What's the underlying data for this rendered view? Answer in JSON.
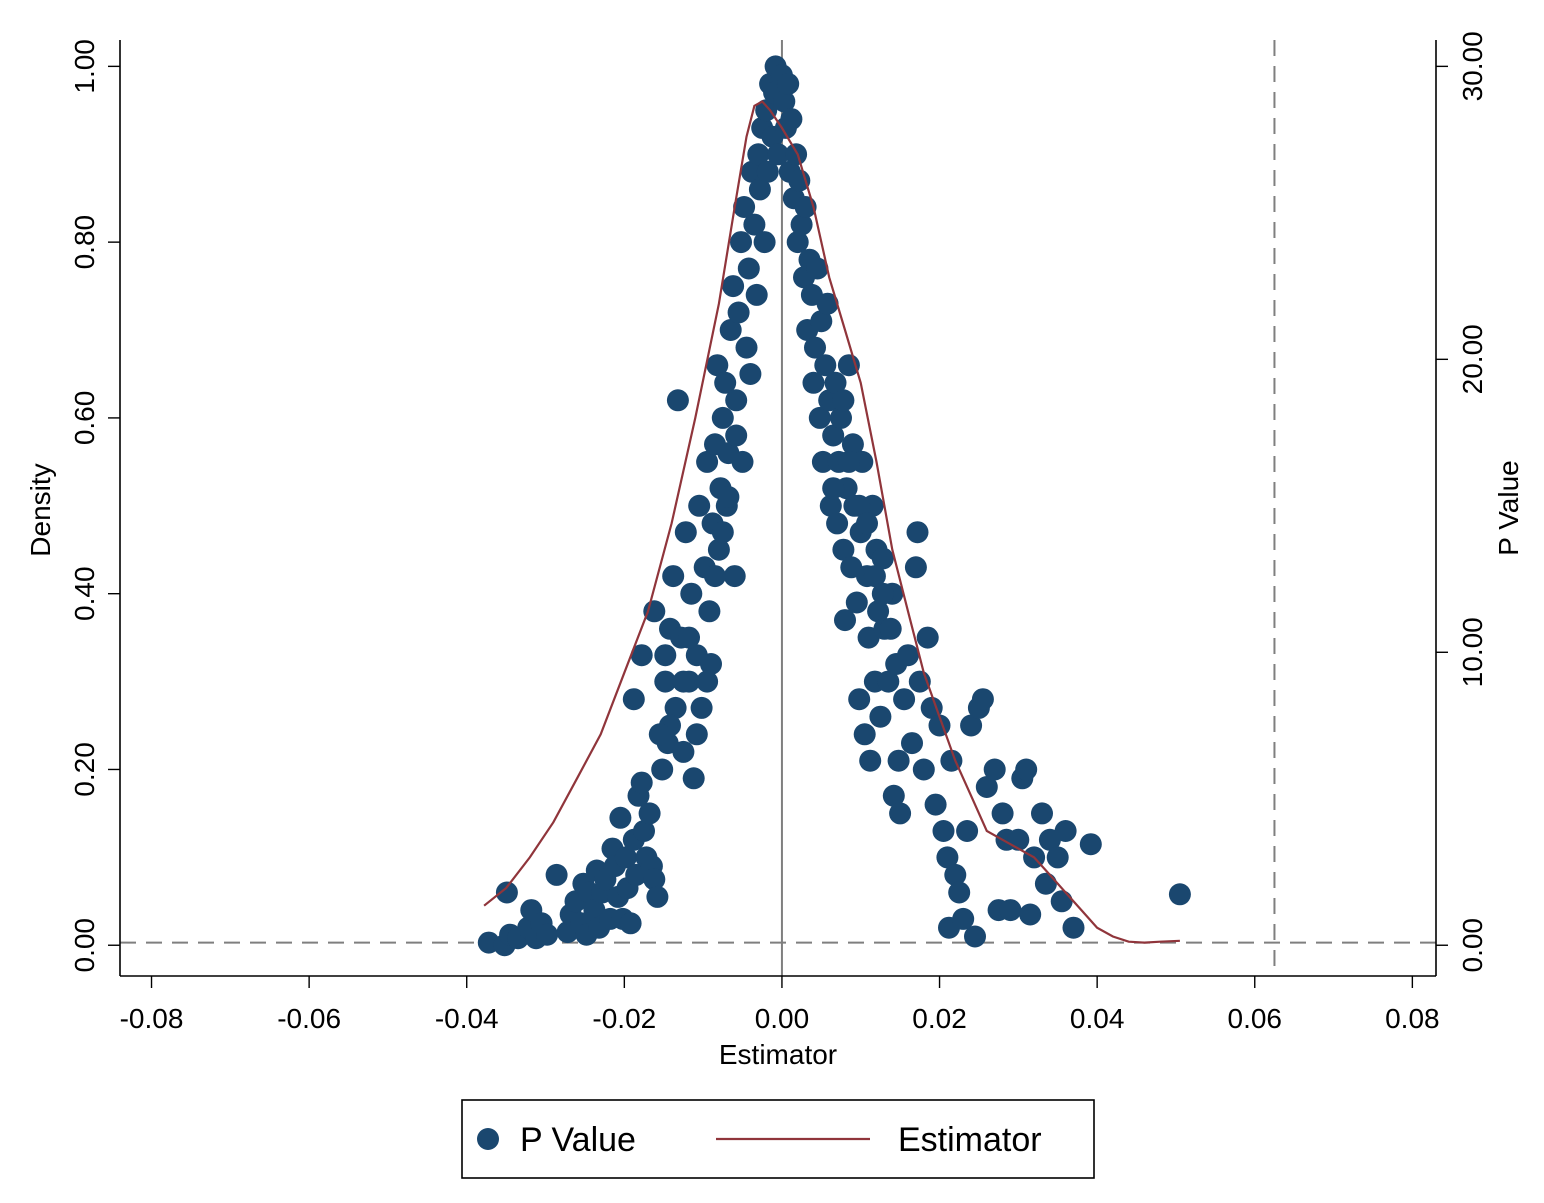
{
  "chart_data": {
    "type": "scatter",
    "xlabel": "Estimator",
    "ylabel_left": "Density",
    "ylabel_right": "P Value",
    "xlim": [
      -0.084,
      0.083
    ],
    "ylim_left": [
      -0.035,
      1.03
    ],
    "ylim_right": [
      -1.05,
      30.9
    ],
    "x_ticks": [
      {
        "value": -0.08,
        "label": "-0.08"
      },
      {
        "value": -0.06,
        "label": "-0.06"
      },
      {
        "value": -0.04,
        "label": "-0.04"
      },
      {
        "value": -0.02,
        "label": "-0.02"
      },
      {
        "value": 0.0,
        "label": "0.00"
      },
      {
        "value": 0.02,
        "label": "0.02"
      },
      {
        "value": 0.04,
        "label": "0.04"
      },
      {
        "value": 0.06,
        "label": "0.06"
      },
      {
        "value": 0.08,
        "label": "0.08"
      }
    ],
    "y_left_ticks": [
      {
        "value": 0.0,
        "label": "0.00"
      },
      {
        "value": 0.2,
        "label": "0.20"
      },
      {
        "value": 0.4,
        "label": "0.40"
      },
      {
        "value": 0.6,
        "label": "0.60"
      },
      {
        "value": 0.8,
        "label": "0.80"
      },
      {
        "value": 1.0,
        "label": "1.00"
      }
    ],
    "y_right_ticks": [
      {
        "value": 0,
        "label": "0.00"
      },
      {
        "value": 10,
        "label": "10.00"
      },
      {
        "value": 20,
        "label": "20.00"
      },
      {
        "value": 30,
        "label": "30.00"
      }
    ],
    "reference_lines": {
      "vertical_solid_x": 0.0,
      "vertical_dashed_x": 0.0625,
      "horizontal_dashed_y": 0.003
    },
    "legend": {
      "placement": "bottom",
      "entries": [
        "P Value",
        "Estimator"
      ]
    },
    "colors": {
      "points": "#1a476f",
      "line": "#90353b",
      "reference": "#7f7f7f"
    },
    "series": [
      {
        "name": "P Value",
        "kind": "scatter",
        "axis": "left",
        "points": [
          [
            -0.0372,
            0.003
          ],
          [
            -0.0352,
            0.0
          ],
          [
            -0.0345,
            0.012
          ],
          [
            -0.0349,
            0.06
          ],
          [
            -0.0335,
            0.008
          ],
          [
            -0.0322,
            0.02
          ],
          [
            -0.0318,
            0.04
          ],
          [
            -0.0312,
            0.008
          ],
          [
            -0.0305,
            0.025
          ],
          [
            -0.0298,
            0.012
          ],
          [
            -0.0286,
            0.08
          ],
          [
            -0.0272,
            0.015
          ],
          [
            -0.0268,
            0.035
          ],
          [
            -0.0262,
            0.05
          ],
          [
            -0.0255,
            0.025
          ],
          [
            -0.0252,
            0.07
          ],
          [
            -0.0248,
            0.012
          ],
          [
            -0.0245,
            0.06
          ],
          [
            -0.0238,
            0.04
          ],
          [
            -0.0235,
            0.085
          ],
          [
            -0.0232,
            0.02
          ],
          [
            -0.0228,
            0.06
          ],
          [
            -0.0224,
            0.075
          ],
          [
            -0.0218,
            0.03
          ],
          [
            -0.0215,
            0.11
          ],
          [
            -0.0212,
            0.09
          ],
          [
            -0.0208,
            0.055
          ],
          [
            -0.0205,
            0.145
          ],
          [
            -0.0202,
            0.03
          ],
          [
            -0.0198,
            0.1
          ],
          [
            -0.0196,
            0.065
          ],
          [
            -0.0192,
            0.025
          ],
          [
            -0.0188,
            0.12
          ],
          [
            -0.0185,
            0.08
          ],
          [
            -0.0182,
            0.17
          ],
          [
            -0.0178,
            0.185
          ],
          [
            -0.0175,
            0.13
          ],
          [
            -0.0172,
            0.1
          ],
          [
            -0.0168,
            0.15
          ],
          [
            -0.0165,
            0.09
          ],
          [
            -0.0162,
            0.075
          ],
          [
            -0.0158,
            0.055
          ],
          [
            -0.0178,
            0.33
          ],
          [
            -0.0188,
            0.28
          ],
          [
            -0.0162,
            0.38
          ],
          [
            -0.0148,
            0.33
          ],
          [
            -0.0152,
            0.2
          ],
          [
            -0.0148,
            0.3
          ],
          [
            -0.0145,
            0.23
          ],
          [
            -0.0142,
            0.36
          ],
          [
            -0.0138,
            0.42
          ],
          [
            -0.0135,
            0.27
          ],
          [
            -0.0132,
            0.62
          ],
          [
            -0.0128,
            0.35
          ],
          [
            -0.0125,
            0.22
          ],
          [
            -0.0122,
            0.47
          ],
          [
            -0.0118,
            0.3
          ],
          [
            -0.0115,
            0.4
          ],
          [
            -0.0112,
            0.19
          ],
          [
            -0.0108,
            0.33
          ],
          [
            -0.0105,
            0.5
          ],
          [
            -0.0102,
            0.27
          ],
          [
            -0.0098,
            0.43
          ],
          [
            -0.0095,
            0.55
          ],
          [
            -0.0092,
            0.38
          ],
          [
            -0.009,
            0.32
          ],
          [
            -0.0088,
            0.48
          ],
          [
            -0.0085,
            0.57
          ],
          [
            -0.0082,
            0.66
          ],
          [
            -0.008,
            0.45
          ],
          [
            -0.0078,
            0.52
          ],
          [
            -0.0075,
            0.6
          ],
          [
            -0.0072,
            0.64
          ],
          [
            -0.007,
            0.5
          ],
          [
            -0.0068,
            0.56
          ],
          [
            -0.0065,
            0.7
          ],
          [
            -0.0062,
            0.75
          ],
          [
            -0.006,
            0.42
          ],
          [
            -0.0058,
            0.62
          ],
          [
            -0.0055,
            0.72
          ],
          [
            -0.0052,
            0.8
          ],
          [
            -0.005,
            0.55
          ],
          [
            -0.0048,
            0.84
          ],
          [
            -0.0045,
            0.68
          ],
          [
            -0.0042,
            0.77
          ],
          [
            -0.004,
            0.65
          ],
          [
            -0.0038,
            0.88
          ],
          [
            -0.0035,
            0.82
          ],
          [
            -0.0032,
            0.74
          ],
          [
            -0.003,
            0.9
          ],
          [
            -0.0028,
            0.86
          ],
          [
            -0.0025,
            0.93
          ],
          [
            -0.0022,
            0.8
          ],
          [
            -0.002,
            0.95
          ],
          [
            -0.0018,
            0.88
          ],
          [
            -0.0015,
            0.98
          ],
          [
            -0.0012,
            0.92
          ],
          [
            -0.001,
            0.97
          ],
          [
            -0.0008,
            1.0
          ],
          [
            -0.0005,
            0.9
          ],
          [
            0.0,
            0.99
          ],
          [
            0.0003,
            0.96
          ],
          [
            0.0005,
            0.93
          ],
          [
            0.0008,
            0.98
          ],
          [
            0.001,
            0.88
          ],
          [
            0.0012,
            0.94
          ],
          [
            0.0015,
            0.85
          ],
          [
            0.0018,
            0.9
          ],
          [
            0.002,
            0.8
          ],
          [
            0.0022,
            0.87
          ],
          [
            0.0025,
            0.82
          ],
          [
            0.0028,
            0.76
          ],
          [
            0.003,
            0.84
          ],
          [
            0.0032,
            0.7
          ],
          [
            0.0035,
            0.78
          ],
          [
            0.0038,
            0.74
          ],
          [
            0.004,
            0.64
          ],
          [
            0.0042,
            0.68
          ],
          [
            0.0045,
            0.77
          ],
          [
            0.0048,
            0.6
          ],
          [
            0.005,
            0.71
          ],
          [
            0.0052,
            0.55
          ],
          [
            0.0055,
            0.66
          ],
          [
            0.0058,
            0.73
          ],
          [
            0.006,
            0.62
          ],
          [
            0.0062,
            0.5
          ],
          [
            0.0065,
            0.58
          ],
          [
            0.0068,
            0.64
          ],
          [
            0.007,
            0.48
          ],
          [
            0.0072,
            0.55
          ],
          [
            0.0075,
            0.6
          ],
          [
            0.0078,
            0.45
          ],
          [
            0.008,
            0.37
          ],
          [
            0.0082,
            0.52
          ],
          [
            0.0085,
            0.66
          ],
          [
            0.0088,
            0.43
          ],
          [
            0.009,
            0.57
          ],
          [
            0.0092,
            0.5
          ],
          [
            0.0095,
            0.39
          ],
          [
            0.0098,
            0.28
          ],
          [
            0.01,
            0.47
          ],
          [
            0.0102,
            0.55
          ],
          [
            0.0105,
            0.24
          ],
          [
            0.0108,
            0.42
          ],
          [
            0.011,
            0.35
          ],
          [
            0.0112,
            0.21
          ],
          [
            0.0115,
            0.5
          ],
          [
            0.0118,
            0.3
          ],
          [
            0.012,
            0.45
          ],
          [
            0.0122,
            0.38
          ],
          [
            0.0125,
            0.26
          ],
          [
            0.0128,
            0.44
          ],
          [
            0.013,
            0.36
          ],
          [
            0.0135,
            0.3
          ],
          [
            0.014,
            0.4
          ],
          [
            0.0142,
            0.17
          ],
          [
            0.0145,
            0.32
          ],
          [
            0.0148,
            0.21
          ],
          [
            0.015,
            0.15
          ],
          [
            0.0155,
            0.28
          ],
          [
            0.016,
            0.33
          ],
          [
            0.0165,
            0.23
          ],
          [
            0.017,
            0.43
          ],
          [
            0.0172,
            0.47
          ],
          [
            0.0175,
            0.3
          ],
          [
            0.018,
            0.2
          ],
          [
            0.0185,
            0.35
          ],
          [
            0.019,
            0.27
          ],
          [
            0.0195,
            0.16
          ],
          [
            0.02,
            0.25
          ],
          [
            0.0205,
            0.13
          ],
          [
            0.021,
            0.1
          ],
          [
            0.0212,
            0.02
          ],
          [
            0.0215,
            0.21
          ],
          [
            0.022,
            0.08
          ],
          [
            0.0225,
            0.06
          ],
          [
            0.023,
            0.03
          ],
          [
            0.0235,
            0.13
          ],
          [
            0.024,
            0.25
          ],
          [
            0.0245,
            0.01
          ],
          [
            0.025,
            0.27
          ],
          [
            0.0255,
            0.28
          ],
          [
            0.026,
            0.18
          ],
          [
            0.027,
            0.2
          ],
          [
            0.0275,
            0.04
          ],
          [
            0.028,
            0.15
          ],
          [
            0.0285,
            0.12
          ],
          [
            0.029,
            0.04
          ],
          [
            0.03,
            0.12
          ],
          [
            0.0305,
            0.19
          ],
          [
            0.031,
            0.2
          ],
          [
            0.0315,
            0.035
          ],
          [
            0.032,
            0.1
          ],
          [
            0.033,
            0.15
          ],
          [
            0.0335,
            0.07
          ],
          [
            0.034,
            0.12
          ],
          [
            0.035,
            0.1
          ],
          [
            0.0355,
            0.05
          ],
          [
            0.036,
            0.13
          ],
          [
            0.037,
            0.02
          ],
          [
            0.0392,
            0.115
          ],
          [
            0.0505,
            0.058
          ],
          [
            -0.0142,
            0.25
          ],
          [
            -0.0155,
            0.24
          ],
          [
            -0.0118,
            0.35
          ],
          [
            -0.0095,
            0.3
          ],
          [
            -0.0085,
            0.42
          ],
          [
            -0.0075,
            0.47
          ],
          [
            -0.0068,
            0.51
          ],
          [
            -0.0058,
            0.58
          ],
          [
            0.0065,
            0.52
          ],
          [
            0.0078,
            0.62
          ],
          [
            0.0085,
            0.55
          ],
          [
            0.0098,
            0.5
          ],
          [
            0.0108,
            0.48
          ],
          [
            0.0118,
            0.42
          ],
          [
            0.0128,
            0.4
          ],
          [
            -0.0108,
            0.24
          ],
          [
            -0.0125,
            0.3
          ],
          [
            0.0138,
            0.36
          ]
        ]
      },
      {
        "name": "Estimator",
        "kind": "line",
        "axis": "left",
        "points": [
          [
            -0.0378,
            0.045
          ],
          [
            -0.035,
            0.065
          ],
          [
            -0.032,
            0.1
          ],
          [
            -0.029,
            0.14
          ],
          [
            -0.026,
            0.19
          ],
          [
            -0.023,
            0.24
          ],
          [
            -0.02,
            0.31
          ],
          [
            -0.017,
            0.38
          ],
          [
            -0.014,
            0.48
          ],
          [
            -0.011,
            0.6
          ],
          [
            -0.008,
            0.73
          ],
          [
            -0.006,
            0.84
          ],
          [
            -0.0045,
            0.92
          ],
          [
            -0.0035,
            0.955
          ],
          [
            -0.0025,
            0.96
          ],
          [
            -0.0015,
            0.95
          ],
          [
            0.0,
            0.93
          ],
          [
            0.002,
            0.9
          ],
          [
            0.004,
            0.84
          ],
          [
            0.006,
            0.76
          ],
          [
            0.008,
            0.7
          ],
          [
            0.01,
            0.64
          ],
          [
            0.012,
            0.55
          ],
          [
            0.014,
            0.45
          ],
          [
            0.016,
            0.38
          ],
          [
            0.018,
            0.31
          ],
          [
            0.02,
            0.26
          ],
          [
            0.022,
            0.21
          ],
          [
            0.024,
            0.17
          ],
          [
            0.026,
            0.13
          ],
          [
            0.028,
            0.12
          ],
          [
            0.03,
            0.11
          ],
          [
            0.032,
            0.1
          ],
          [
            0.034,
            0.08
          ],
          [
            0.036,
            0.06
          ],
          [
            0.038,
            0.04
          ],
          [
            0.04,
            0.02
          ],
          [
            0.042,
            0.01
          ],
          [
            0.044,
            0.004
          ],
          [
            0.046,
            0.003
          ],
          [
            0.048,
            0.004
          ],
          [
            0.0505,
            0.005
          ]
        ]
      }
    ]
  }
}
